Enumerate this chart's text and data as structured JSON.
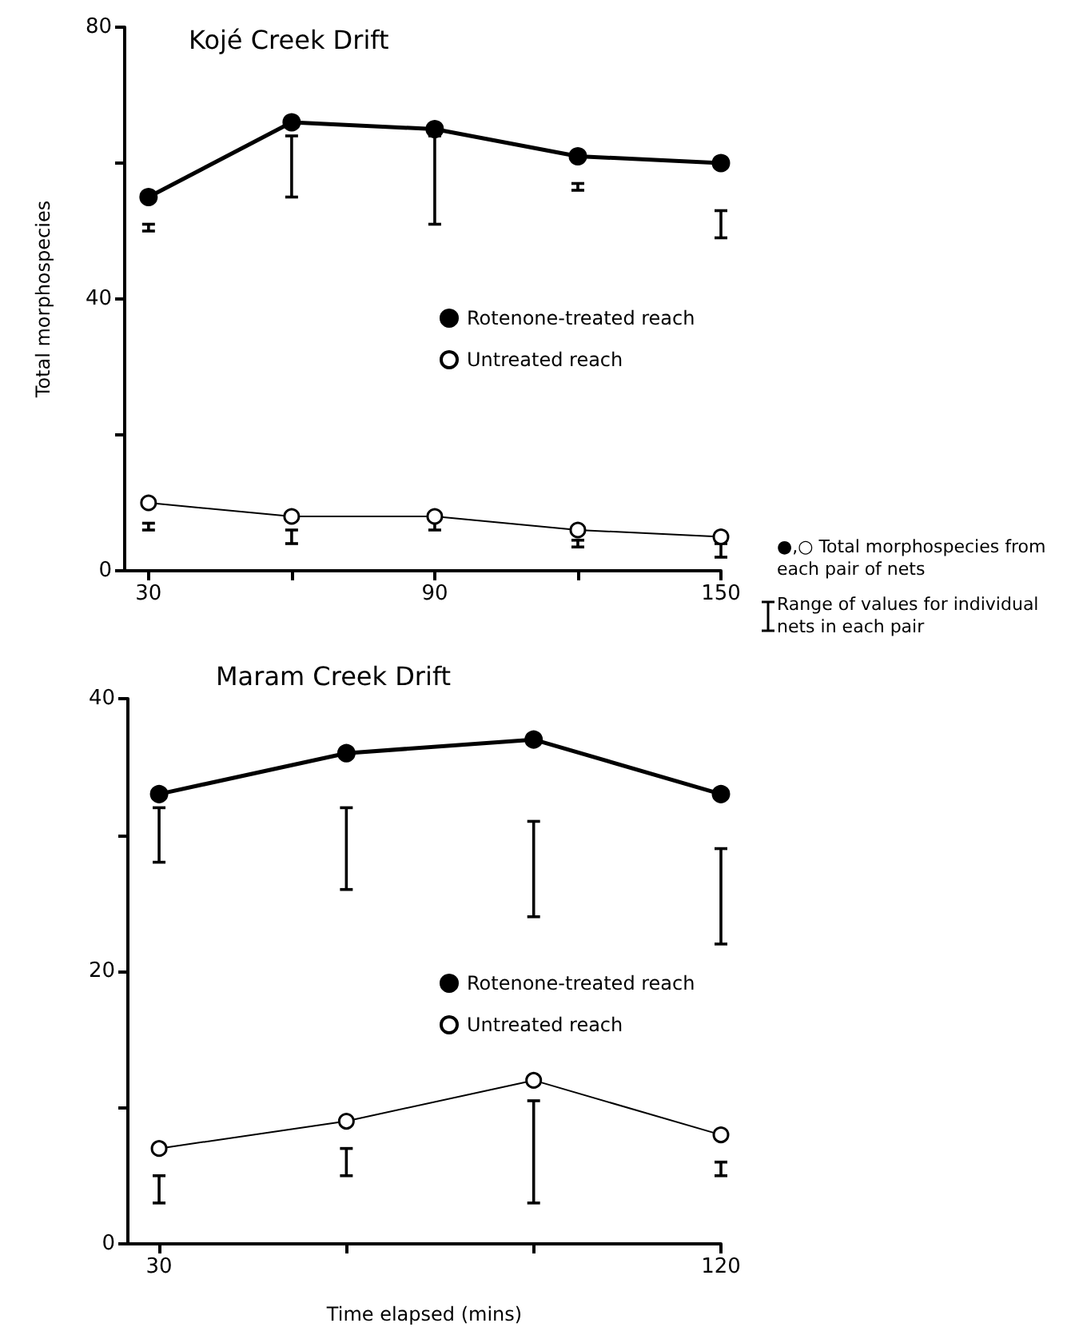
{
  "chart_data": [
    {
      "type": "line",
      "title": "Kojé Creek Drift",
      "ylabel": "Total morphospecies",
      "x": [
        30,
        60,
        90,
        120,
        150
      ],
      "series": [
        {
          "name": "Rotenone-treated reach",
          "color": "#000000",
          "values": [
            55,
            66,
            65,
            61,
            60
          ],
          "errors": [
            [
              50,
              51
            ],
            [
              55,
              64
            ],
            [
              51,
              64
            ],
            [
              56,
              57
            ],
            [
              49,
              53
            ]
          ]
        },
        {
          "name": "Untreated reach",
          "color": "#000000",
          "values": [
            10,
            8,
            8,
            6,
            5
          ],
          "errors": [
            [
              6,
              7
            ],
            [
              4,
              6
            ],
            [
              6,
              8
            ],
            [
              3.5,
              4.5
            ],
            [
              2,
              4
            ]
          ]
        }
      ],
      "xlim": [
        25,
        150
      ],
      "xticks": [
        30,
        {
          "value": 60,
          "label": null
        },
        90,
        {
          "value": 120,
          "label": null
        },
        150
      ],
      "ylim": [
        0,
        80
      ],
      "yticks": [
        0,
        {
          "value": 20,
          "label": null
        },
        40,
        {
          "value": 60,
          "label": null
        },
        80
      ],
      "marker": "circle",
      "legend": "right",
      "grid": false,
      "annotations": [
        "●,○ Total morphospecies from each pair of nets",
        "Range of values for individual nets in each pair"
      ]
    },
    {
      "type": "line",
      "title": "Maram Creek Drift",
      "xlabel": "Time elapsed (mins)",
      "x": [
        30,
        60,
        90,
        120
      ],
      "series": [
        {
          "name": "Rotenone-treated reach",
          "color": "#000000",
          "values": [
            33,
            36,
            37,
            33
          ],
          "errors": [
            [
              28,
              32
            ],
            [
              26,
              32
            ],
            [
              24,
              31
            ],
            [
              22,
              29
            ]
          ]
        },
        {
          "name": "Untreated reach",
          "color": "#000000",
          "values": [
            7,
            9,
            12,
            8
          ],
          "errors": [
            [
              3,
              5
            ],
            [
              5,
              7
            ],
            [
              3,
              10.5
            ],
            [
              5,
              6
            ]
          ]
        }
      ],
      "xlim": [
        25,
        120
      ],
      "xticks": [
        30,
        {
          "value": 60,
          "label": null
        },
        {
          "value": 90,
          "label": null
        },
        120
      ],
      "ylim": [
        0,
        40
      ],
      "yticks": [
        0,
        {
          "value": 10,
          "label": null
        },
        20,
        {
          "value": 30,
          "label": null
        },
        40
      ],
      "marker": "circle",
      "legend": "right",
      "grid": false
    }
  ]
}
